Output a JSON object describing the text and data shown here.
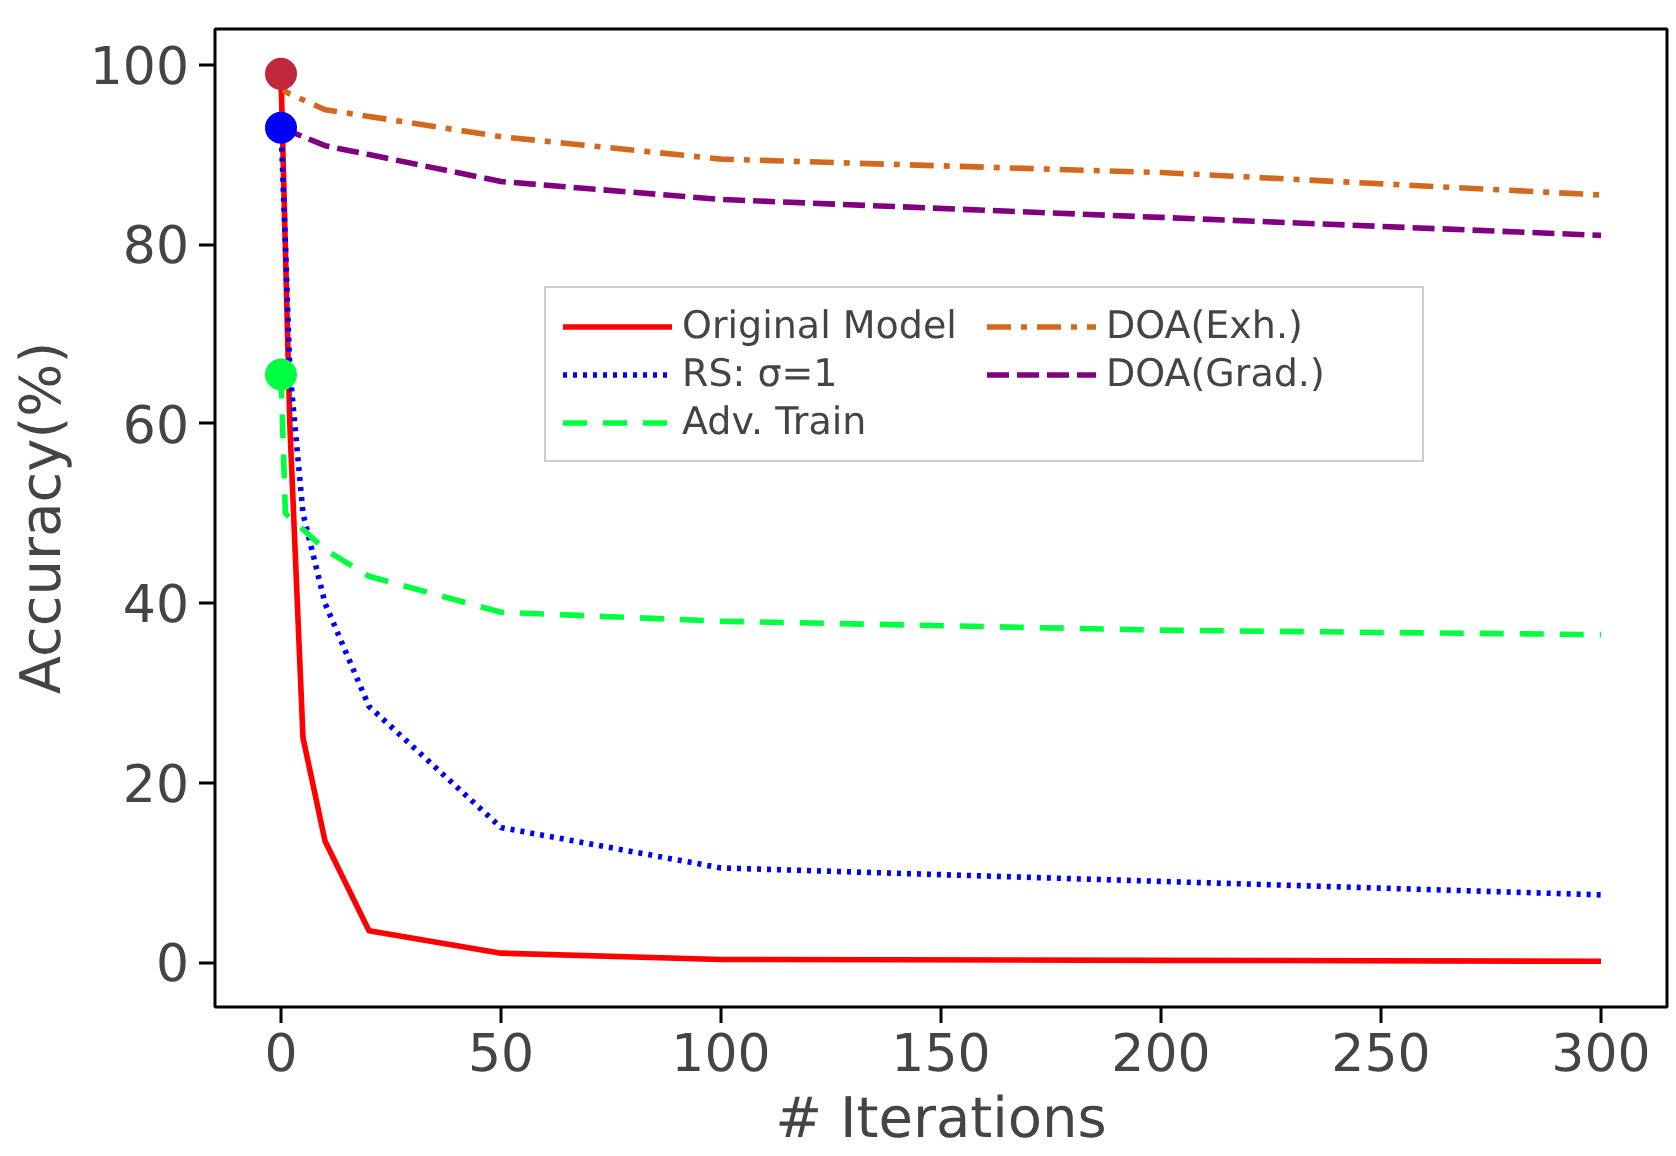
{
  "chart_data": {
    "type": "line",
    "xlabel": "# Iterations",
    "ylabel": "Accuracy(%)",
    "xlim": [
      -15,
      315
    ],
    "ylim": [
      -5,
      104
    ],
    "xticks": [
      0,
      50,
      100,
      150,
      200,
      250,
      300
    ],
    "yticks": [
      0,
      20,
      40,
      60,
      80,
      100
    ],
    "grid": false,
    "legend": "right",
    "marker": "none",
    "series": [
      {
        "name": "Original Model",
        "color": "#ff0000",
        "line_style": "solid",
        "x": [
          0,
          2,
          5,
          10,
          20,
          50,
          100,
          200,
          300
        ],
        "values": [
          99,
          60,
          25,
          13.5,
          3.5,
          1,
          0.3,
          0.2,
          0.1
        ]
      },
      {
        "name": "RS: σ=1",
        "color": "#0000ff",
        "line_style": "dotted",
        "x": [
          0,
          1,
          2,
          5,
          10,
          20,
          50,
          100,
          200,
          300
        ],
        "values": [
          93,
          80,
          66,
          50,
          40,
          28.5,
          15,
          10.5,
          9,
          7.5
        ]
      },
      {
        "name": "Adv. Train",
        "color": "#00ff40",
        "line_style": "dashed",
        "x": [
          0,
          1,
          10,
          20,
          50,
          100,
          200,
          300
        ],
        "values": [
          65.5,
          50,
          46,
          43,
          39,
          38,
          37,
          36.5
        ]
      },
      {
        "name": "DOA(Exh.)",
        "color": "#d2691e",
        "line_style": "dashdot",
        "x": [
          0,
          1,
          10,
          50,
          100,
          200,
          300
        ],
        "values": [
          99,
          97,
          95,
          92,
          89.5,
          88,
          85.5
        ]
      },
      {
        "name": "DOA(Grad.)",
        "color": "#800080",
        "line_style": "longdash",
        "x": [
          0,
          10,
          20,
          50,
          100,
          200,
          300
        ],
        "values": [
          93,
          91,
          90,
          87,
          85,
          83,
          81
        ]
      },
      {
        "type": "scatter",
        "marker": "circle",
        "x": [
          0,
          0,
          0
        ],
        "values": [
          65.5,
          93,
          99
        ],
        "colors": [
          "#00ff40",
          "#0000ff",
          "#c0283c"
        ]
      }
    ]
  }
}
